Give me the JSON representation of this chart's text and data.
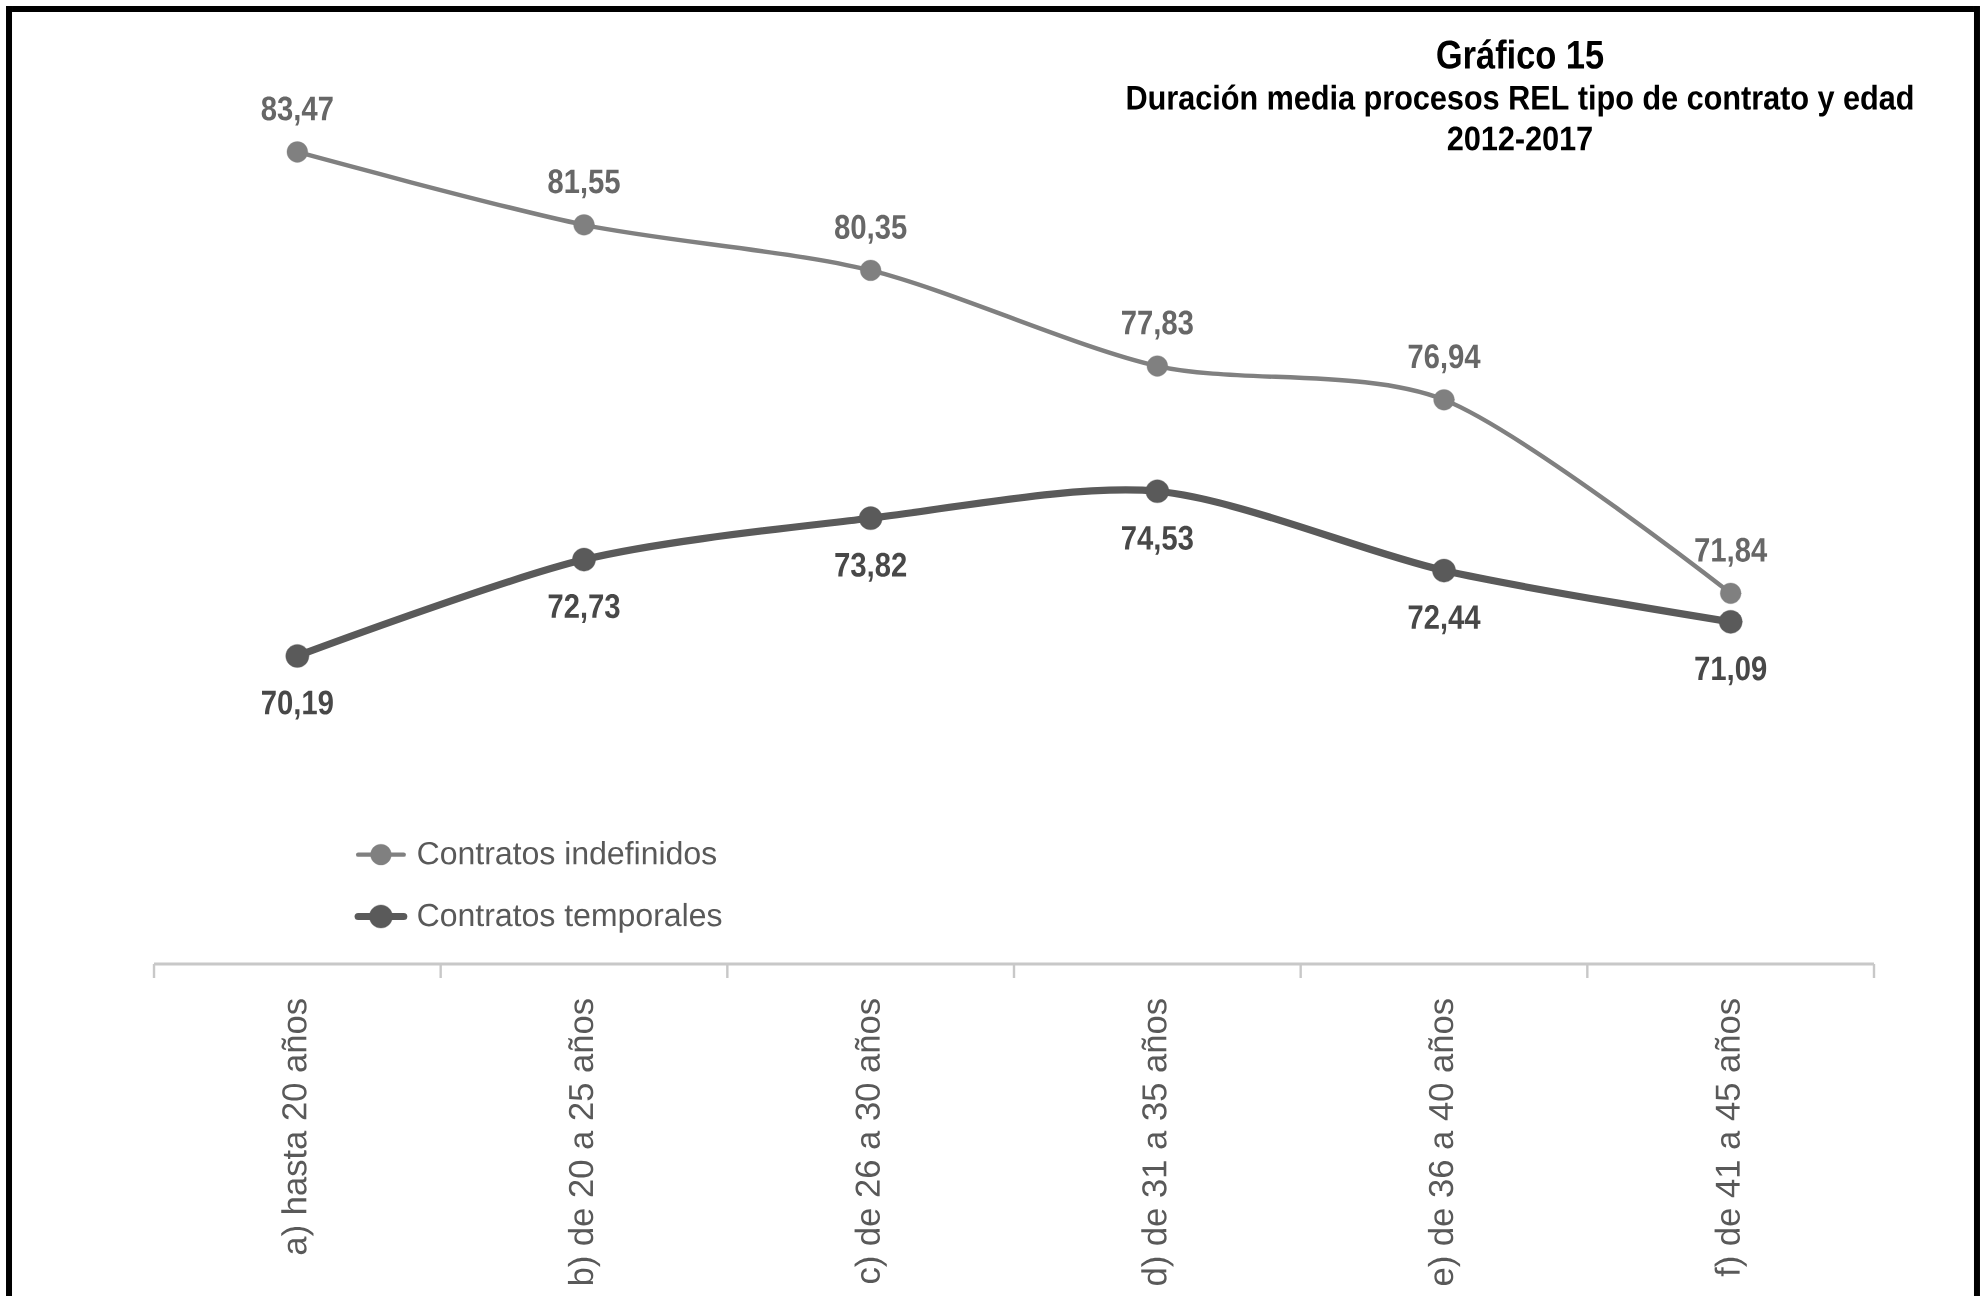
{
  "chart_data": {
    "type": "line",
    "title": "Gráfico 15",
    "subtitle": "Duración media procesos REL tipo de contrato y edad 2012-2017",
    "categories": [
      "a) hasta 20 años",
      "b) de 20 a 25 años",
      "c) de 26 a 30 años",
      "d) de 31 a 35 años",
      "e) de 36 a 40 años",
      "f) de 41 a 45 años"
    ],
    "series": [
      {
        "name": "Contratos indefinidos",
        "color": "#808080",
        "values": [
          83.47,
          81.55,
          80.35,
          77.83,
          76.94,
          71.84
        ],
        "value_labels": [
          "83,47",
          "81,55",
          "80,35",
          "77,83",
          "76,94",
          "71,84"
        ]
      },
      {
        "name": "Contratos temporales",
        "color": "#5a5a5a",
        "values": [
          70.19,
          72.73,
          73.82,
          74.53,
          72.44,
          71.09
        ],
        "value_labels": [
          "70,19",
          "72,73",
          "73,82",
          "74,53",
          "72,44",
          "71,09"
        ]
      }
    ],
    "legend": "bottom left",
    "marker": "circle",
    "line_style": "solid",
    "grid": false,
    "tick_labels": "x"
  }
}
